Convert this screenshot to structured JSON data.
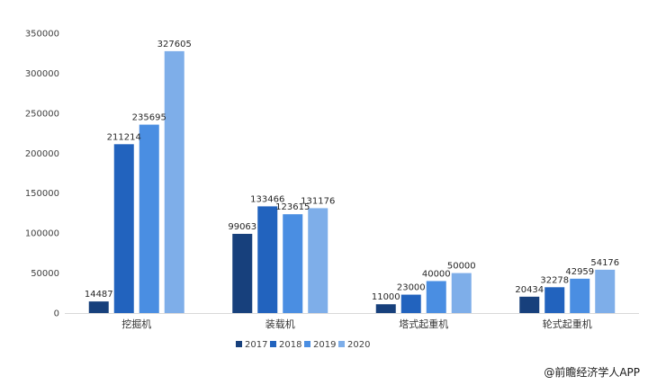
{
  "chart_data": {
    "type": "bar",
    "categories": [
      "挖掘机",
      "装载机",
      "塔式起重机",
      "轮式起重机"
    ],
    "series": [
      {
        "name": "2017",
        "color": "#17407c",
        "values": [
          14487,
          99063,
          11000,
          20434
        ]
      },
      {
        "name": "2018",
        "color": "#2263be",
        "values": [
          211214,
          133466,
          23000,
          32278
        ]
      },
      {
        "name": "2019",
        "color": "#4a8ee2",
        "values": [
          235695,
          123615,
          40000,
          42959
        ]
      },
      {
        "name": "2020",
        "color": "#7eaee9",
        "values": [
          327605,
          131176,
          50000,
          54176
        ]
      }
    ],
    "ylim": [
      0,
      350000
    ],
    "yticks": [
      "0",
      "50000",
      "100000",
      "150000",
      "200000",
      "250000",
      "300000",
      "350000"
    ],
    "ytick_values": [
      0,
      50000,
      100000,
      150000,
      200000,
      250000,
      300000,
      350000
    ],
    "legend_position": "bottom",
    "grid": false,
    "title": "",
    "xlabel": "",
    "ylabel": ""
  },
  "source": "@前瞻经济学人APP"
}
